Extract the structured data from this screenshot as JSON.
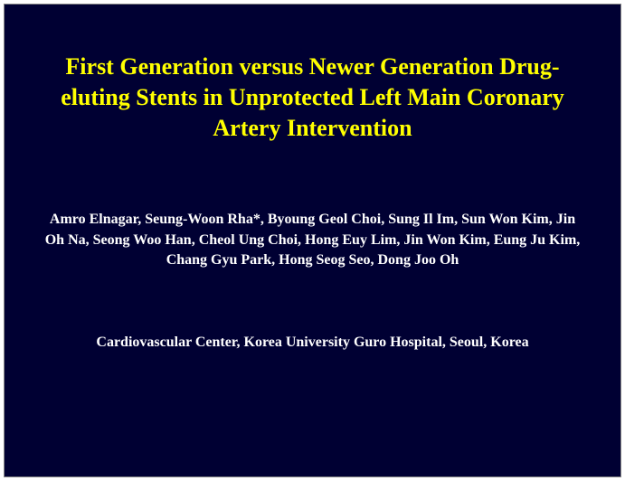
{
  "slide": {
    "background_color": "#000033",
    "page_background": "#ffffff",
    "title": {
      "text": "First Generation versus Newer Generation Drug-eluting Stents in Unprotected Left Main Coronary Artery Intervention",
      "color": "#ffff00",
      "font_size_pt": 20,
      "font_weight": "bold",
      "font_family": "Times New Roman"
    },
    "authors": {
      "text": "Amro Elnagar, Seung-Woon Rha*, Byoung Geol Choi, Sung Il Im, Sun Won Kim, Jin Oh Na,  Seong Woo Han, Cheol Ung Choi, Hong Euy Lim, Jin Won Kim, Eung Ju Kim, Chang Gyu Park, Hong Seog Seo, Dong Joo Oh",
      "color": "#ffffff",
      "font_size_pt": 12,
      "font_weight": "bold",
      "font_family": "Times New Roman"
    },
    "affiliation": {
      "text": "Cardiovascular Center, Korea University   Guro Hospital, Seoul, Korea",
      "color": "#ffffff",
      "font_size_pt": 12,
      "font_weight": "bold",
      "font_family": "Times New Roman"
    }
  }
}
